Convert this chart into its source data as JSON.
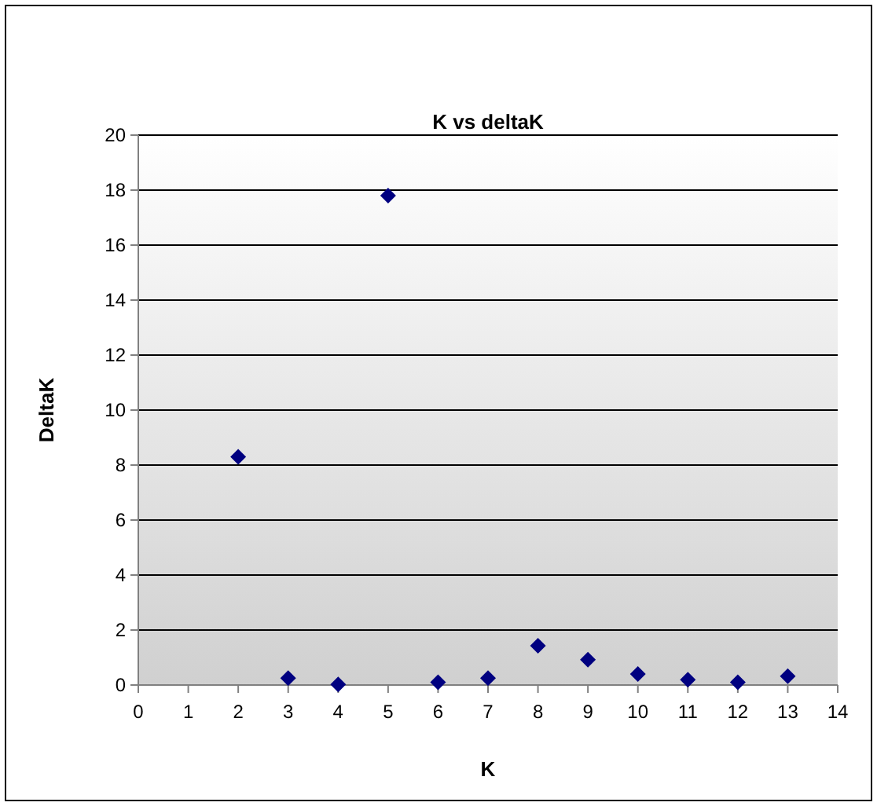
{
  "chart_data": {
    "type": "scatter",
    "title": "K vs deltaK",
    "xlabel": "K",
    "ylabel": "DeltaK",
    "x": [
      2,
      3,
      4,
      5,
      6,
      7,
      8,
      9,
      10,
      11,
      12,
      13
    ],
    "series": [
      {
        "color": "#000080",
        "values": [
          8.3,
          0.25,
          0.02,
          17.8,
          0.1,
          0.25,
          1.43,
          0.92,
          0.4,
          0.19,
          0.1,
          0.32
        ]
      }
    ],
    "xlim": [
      0,
      14
    ],
    "xticks": [
      0,
      1,
      2,
      3,
      4,
      5,
      6,
      7,
      8,
      9,
      10,
      11,
      12,
      13,
      14
    ],
    "ylim": [
      0,
      20
    ],
    "yticks": [
      0,
      2,
      4,
      6,
      8,
      10,
      12,
      14,
      16,
      18,
      20
    ],
    "grid": "y",
    "marker": "diamond"
  }
}
